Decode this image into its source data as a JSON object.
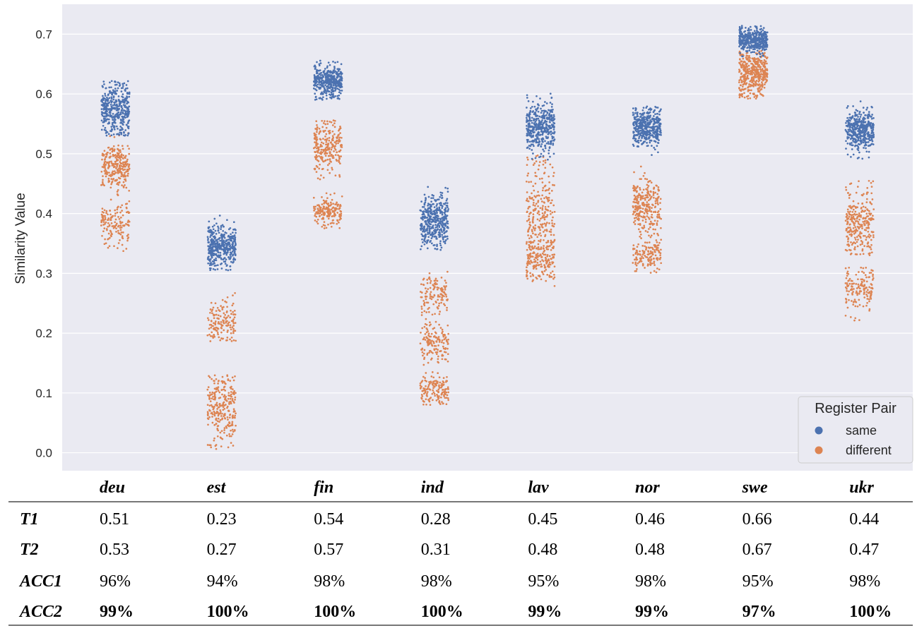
{
  "chart_data": {
    "type": "scatter",
    "subtype": "strip",
    "ylabel": "Similarity Value",
    "xlabel": "",
    "ylim": [
      -0.03,
      0.75
    ],
    "yticks": [
      0.0,
      0.1,
      0.2,
      0.3,
      0.4,
      0.5,
      0.6,
      0.7
    ],
    "ytick_labels": [
      "0.0",
      "0.1",
      "0.2",
      "0.3",
      "0.4",
      "0.5",
      "0.6",
      "0.7"
    ],
    "grid": true,
    "categories": [
      "deu",
      "est",
      "fin",
      "ind",
      "lav",
      "nor",
      "swe",
      "ukr"
    ],
    "legend": {
      "title": "Register Pair",
      "placement": "bottom-right",
      "entries": [
        {
          "label": "same",
          "color": "#4c72b0"
        },
        {
          "label": "different",
          "color": "#dd8452"
        }
      ]
    },
    "series": [
      {
        "name": "same",
        "color": "#4c72b0",
        "clusters": [
          [
            {
              "center": 0.575,
              "spread": 0.022,
              "min": 0.53,
              "max": 0.622
            }
          ],
          [
            {
              "center": 0.345,
              "spread": 0.018,
              "min": 0.305,
              "max": 0.398
            }
          ],
          [
            {
              "center": 0.622,
              "spread": 0.012,
              "min": 0.59,
              "max": 0.665
            }
          ],
          [
            {
              "center": 0.385,
              "spread": 0.022,
              "min": 0.335,
              "max": 0.445
            }
          ],
          [
            {
              "center": 0.545,
              "spread": 0.02,
              "min": 0.49,
              "max": 0.603
            }
          ],
          [
            {
              "center": 0.545,
              "spread": 0.016,
              "min": 0.49,
              "max": 0.58
            }
          ],
          [
            {
              "center": 0.69,
              "spread": 0.01,
              "min": 0.66,
              "max": 0.715
            }
          ],
          [
            {
              "center": 0.54,
              "spread": 0.017,
              "min": 0.49,
              "max": 0.593
            }
          ]
        ]
      },
      {
        "name": "different",
        "color": "#dd8452",
        "clusters": [
          [
            {
              "center": 0.48,
              "spread": 0.02,
              "min": 0.43,
              "max": 0.535,
              "share": 0.65
            },
            {
              "center": 0.385,
              "spread": 0.017,
              "min": 0.315,
              "max": 0.425,
              "share": 0.35
            }
          ],
          [
            {
              "center": 0.22,
              "spread": 0.017,
              "min": 0.185,
              "max": 0.27,
              "share": 0.35
            },
            {
              "center": 0.075,
              "spread": 0.03,
              "min": 0.005,
              "max": 0.13,
              "share": 0.65
            }
          ],
          [
            {
              "center": 0.51,
              "spread": 0.022,
              "min": 0.455,
              "max": 0.556,
              "share": 0.6
            },
            {
              "center": 0.405,
              "spread": 0.013,
              "min": 0.373,
              "max": 0.44,
              "share": 0.4
            }
          ],
          [
            {
              "center": 0.265,
              "spread": 0.017,
              "min": 0.23,
              "max": 0.31,
              "share": 0.3
            },
            {
              "center": 0.185,
              "spread": 0.018,
              "min": 0.145,
              "max": 0.225,
              "share": 0.35
            },
            {
              "center": 0.105,
              "spread": 0.013,
              "min": 0.08,
              "max": 0.135,
              "share": 0.35
            }
          ],
          [
            {
              "center": 0.4,
              "spread": 0.045,
              "min": 0.34,
              "max": 0.5,
              "share": 0.6
            },
            {
              "center": 0.32,
              "spread": 0.017,
              "min": 0.26,
              "max": 0.345,
              "share": 0.4
            }
          ],
          [
            {
              "center": 0.41,
              "spread": 0.025,
              "min": 0.36,
              "max": 0.485,
              "share": 0.65
            },
            {
              "center": 0.33,
              "spread": 0.013,
              "min": 0.3,
              "max": 0.36,
              "share": 0.35
            }
          ],
          [
            {
              "center": 0.635,
              "spread": 0.02,
              "min": 0.59,
              "max": 0.672
            }
          ],
          [
            {
              "center": 0.385,
              "spread": 0.03,
              "min": 0.33,
              "max": 0.455,
              "share": 0.65
            },
            {
              "center": 0.275,
              "spread": 0.02,
              "min": 0.22,
              "max": 0.31,
              "share": 0.35
            }
          ]
        ]
      }
    ],
    "points_per_cluster_group": 420
  },
  "table": {
    "rows": [
      {
        "label": "T1",
        "values": [
          "0.51",
          "0.23",
          "0.54",
          "0.28",
          "0.45",
          "0.46",
          "0.66",
          "0.44"
        ],
        "bold": false
      },
      {
        "label": "T2",
        "values": [
          "0.53",
          "0.27",
          "0.57",
          "0.31",
          "0.48",
          "0.48",
          "0.67",
          "0.47"
        ],
        "bold": false
      },
      {
        "label": "ACC1",
        "values": [
          "96%",
          "94%",
          "98%",
          "98%",
          "95%",
          "98%",
          "95%",
          "98%"
        ],
        "bold": false
      },
      {
        "label": "ACC2",
        "values": [
          "99%",
          "100%",
          "100%",
          "100%",
          "99%",
          "99%",
          "97%",
          "100%"
        ],
        "bold": true
      }
    ]
  },
  "colors": {
    "plot_background": "#eaeaf2",
    "grid": "#ffffff",
    "same": "#4c72b0",
    "different": "#dd8452"
  }
}
